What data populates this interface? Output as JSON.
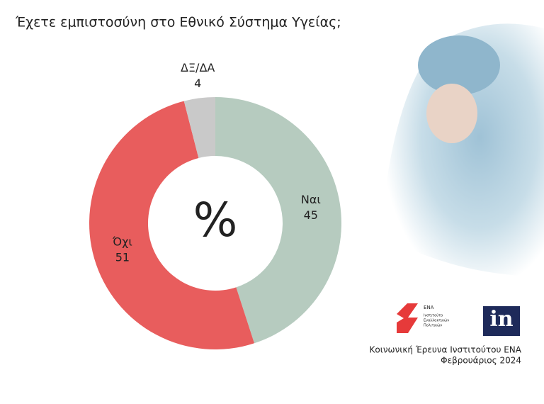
{
  "chart_data": {
    "type": "donut",
    "title": "Έχετε εμπιστοσύνη στο Εθνικό Σύστημα Υγείας;",
    "categories": [
      "Ναι",
      "Όχι",
      "ΔΞ/ΔΑ"
    ],
    "values": [
      45,
      51,
      4
    ],
    "colors": [
      "#b6cbbf",
      "#e85d5d",
      "#c9c9c9"
    ],
    "center_label": "%"
  },
  "footer": {
    "logo_name": "ΕΝΑ",
    "logo_subtitle": [
      "Ινστιτούτο",
      "Εναλλακτικών",
      "Πολιτικών"
    ],
    "logo_in": "in",
    "source": "Κοινωνική Έρευνα Ινστιτούτου ΕΝΑ",
    "date": "Φεβρουάριος 2024"
  }
}
